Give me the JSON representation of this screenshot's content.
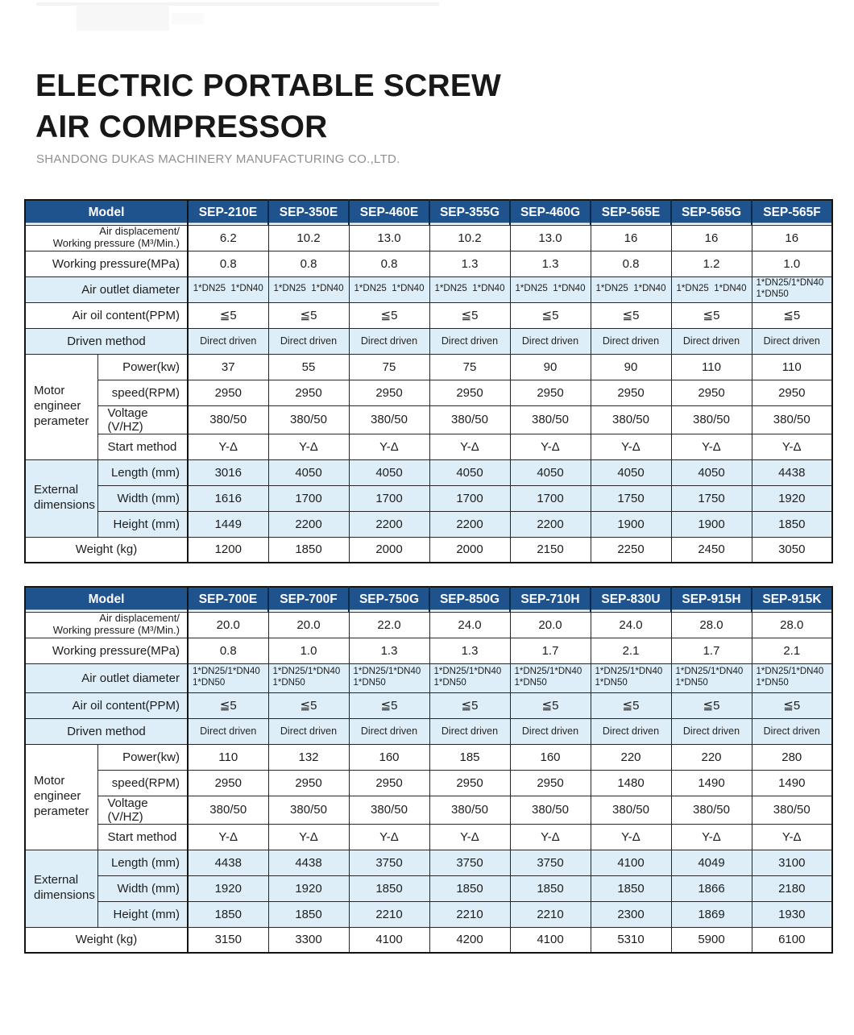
{
  "page": {
    "title": "ELECTRIC PORTABLE SCREW\nAIR COMPRESSOR",
    "subtitle": "SHANDONG DUKAS MACHINERY MANUFACTURING CO.,LTD."
  },
  "theme": {
    "header_blue": "#1e538e",
    "header_sep": "#0c2a4a",
    "row_blue": "#ddeef8",
    "border_dark": "#262626",
    "title_color": "#181818",
    "subtitle_color": "#909090"
  },
  "tables": [
    {
      "header_label": "Model",
      "models": [
        "SEP-210E",
        "SEP-350E",
        "SEP-460E",
        "SEP-355G",
        "SEP-460G",
        "SEP-565E",
        "SEP-565G",
        "SEP-565F"
      ],
      "rows": [
        {
          "label": "Air displacement/\nWorking pressure (M³/Min.)",
          "label_class": "r two",
          "shaded": false,
          "values": [
            "6.2",
            "10.2",
            "13.0",
            "10.2",
            "13.0",
            "16",
            "16",
            "16"
          ]
        },
        {
          "label": "Working pressure(MPa)",
          "label_class": "r",
          "shaded": false,
          "values": [
            "0.8",
            "0.8",
            "0.8",
            "1.3",
            "1.3",
            "0.8",
            "1.2",
            "1.0"
          ]
        },
        {
          "label": "Air outlet diameter",
          "label_class": "r",
          "shaded": true,
          "value_class": "xs",
          "values": [
            "1*DN25  1*DN40",
            "1*DN25  1*DN40",
            "1*DN25  1*DN40",
            "1*DN25  1*DN40",
            "1*DN25  1*DN40",
            "1*DN25  1*DN40",
            "1*DN25  1*DN40",
            "1*DN25/1*DN40\n1*DN50"
          ]
        },
        {
          "label": "Air oil content(PPM)",
          "label_class": "r",
          "shaded": false,
          "values": [
            "≦5",
            "≦5",
            "≦5",
            "≦5",
            "≦5",
            "≦5",
            "≦5",
            "≦5"
          ]
        },
        {
          "label": "Driven method",
          "label_class": "c",
          "shaded": true,
          "value_class": "sm",
          "values": [
            "Direct driven",
            "Direct driven",
            "Direct driven",
            "Direct driven",
            "Direct driven",
            "Direct driven",
            "Direct driven",
            "Direct driven"
          ]
        },
        {
          "group": "Motor\nengineer\nperameter",
          "span": 4,
          "label": "Power(kw)",
          "label_class": "r",
          "shaded": false,
          "values": [
            "37",
            "55",
            "75",
            "75",
            "90",
            "90",
            "110",
            "110"
          ]
        },
        {
          "sub": true,
          "label": "speed(RPM)",
          "label_class": "r",
          "shaded": false,
          "values": [
            "2950",
            "2950",
            "2950",
            "2950",
            "2950",
            "2950",
            "2950",
            "2950"
          ]
        },
        {
          "sub": true,
          "label": "Voltage (V/HZ)",
          "label_class": "l",
          "shaded": false,
          "values": [
            "380/50",
            "380/50",
            "380/50",
            "380/50",
            "380/50",
            "380/50",
            "380/50",
            "380/50"
          ]
        },
        {
          "sub": true,
          "label": "Start method",
          "label_class": "l",
          "shaded": false,
          "values": [
            "Y-Δ",
            "Y-Δ",
            "Y-Δ",
            "Y-Δ",
            "Y-Δ",
            "Y-Δ",
            "Y-Δ",
            "Y-Δ"
          ]
        },
        {
          "group": "External\ndimensions",
          "span": 3,
          "label": "Length (mm)",
          "label_class": "r",
          "shaded": true,
          "values": [
            "3016",
            "4050",
            "4050",
            "4050",
            "4050",
            "4050",
            "4050",
            "4438"
          ]
        },
        {
          "sub": true,
          "label": "Width (mm)",
          "label_class": "r",
          "shaded": true,
          "values": [
            "1616",
            "1700",
            "1700",
            "1700",
            "1700",
            "1750",
            "1750",
            "1920"
          ]
        },
        {
          "sub": true,
          "label": "Height (mm)",
          "label_class": "r",
          "shaded": true,
          "values": [
            "1449",
            "2200",
            "2200",
            "2200",
            "2200",
            "1900",
            "1900",
            "1850"
          ]
        },
        {
          "label": "Weight (kg)",
          "label_class": "c",
          "shaded": false,
          "values": [
            "1200",
            "1850",
            "2000",
            "2000",
            "2150",
            "2250",
            "2450",
            "3050"
          ]
        }
      ]
    },
    {
      "header_label": "Model",
      "models": [
        "SEP-700E",
        "SEP-700F",
        "SEP-750G",
        "SEP-850G",
        "SEP-710H",
        "SEP-830U",
        "SEP-915H",
        "SEP-915K"
      ],
      "rows": [
        {
          "label": "Air displacement/\nWorking pressure (M³/Min.)",
          "label_class": "r two",
          "shaded": false,
          "values": [
            "20.0",
            "20.0",
            "22.0",
            "24.0",
            "20.0",
            "24.0",
            "28.0",
            "28.0"
          ]
        },
        {
          "label": "Working pressure(MPa)",
          "label_class": "r",
          "shaded": false,
          "values": [
            "0.8",
            "1.0",
            "1.3",
            "1.3",
            "1.7",
            "2.1",
            "1.7",
            "2.1"
          ]
        },
        {
          "label": "Air outlet diameter",
          "label_class": "r",
          "shaded": true,
          "value_class": "xs",
          "tall": true,
          "values": [
            "1*DN25/1*DN40\n1*DN50",
            "1*DN25/1*DN40\n1*DN50",
            "1*DN25/1*DN40\n1*DN50",
            "1*DN25/1*DN40\n1*DN50",
            "1*DN25/1*DN40\n1*DN50",
            "1*DN25/1*DN40\n1*DN50",
            "1*DN25/1*DN40\n1*DN50",
            "1*DN25/1*DN40\n1*DN50"
          ]
        },
        {
          "label": "Air oil content(PPM)",
          "label_class": "r",
          "shaded": true,
          "values": [
            "≦5",
            "≦5",
            "≦5",
            "≦5",
            "≦5",
            "≦5",
            "≦5",
            "≦5"
          ]
        },
        {
          "label": "Driven method",
          "label_class": "c",
          "shaded": true,
          "value_class": "sm",
          "values": [
            "Direct driven",
            "Direct driven",
            "Direct driven",
            "Direct driven",
            "Direct driven",
            "Direct driven",
            "Direct driven",
            "Direct driven"
          ]
        },
        {
          "group": "Motor\nengineer\nperameter",
          "span": 4,
          "label": "Power(kw)",
          "label_class": "r",
          "shaded": false,
          "values": [
            "110",
            "132",
            "160",
            "185",
            "160",
            "220",
            "220",
            "280"
          ]
        },
        {
          "sub": true,
          "label": "speed(RPM)",
          "label_class": "r",
          "shaded": false,
          "values": [
            "2950",
            "2950",
            "2950",
            "2950",
            "2950",
            "1480",
            "1490",
            "1490"
          ]
        },
        {
          "sub": true,
          "label": "Voltage (V/HZ)",
          "label_class": "l",
          "shaded": false,
          "values": [
            "380/50",
            "380/50",
            "380/50",
            "380/50",
            "380/50",
            "380/50",
            "380/50",
            "380/50"
          ]
        },
        {
          "sub": true,
          "label": "Start method",
          "label_class": "l",
          "shaded": false,
          "values": [
            "Y-Δ",
            "Y-Δ",
            "Y-Δ",
            "Y-Δ",
            "Y-Δ",
            "Y-Δ",
            "Y-Δ",
            "Y-Δ"
          ]
        },
        {
          "group": "External\ndimensions",
          "span": 3,
          "label": "Length (mm)",
          "label_class": "r",
          "shaded": true,
          "values": [
            "4438",
            "4438",
            "3750",
            "3750",
            "3750",
            "4100",
            "4049",
            "3100"
          ]
        },
        {
          "sub": true,
          "label": "Width (mm)",
          "label_class": "r",
          "shaded": true,
          "values": [
            "1920",
            "1920",
            "1850",
            "1850",
            "1850",
            "1850",
            "1866",
            "2180"
          ]
        },
        {
          "sub": true,
          "label": "Height (mm)",
          "label_class": "r",
          "shaded": true,
          "values": [
            "1850",
            "1850",
            "2210",
            "2210",
            "2210",
            "2300",
            "1869",
            "1930"
          ]
        },
        {
          "label": "Weight (kg)",
          "label_class": "c",
          "shaded": false,
          "values": [
            "3150",
            "3300",
            "4100",
            "4200",
            "4100",
            "5310",
            "5900",
            "6100"
          ]
        }
      ]
    }
  ]
}
